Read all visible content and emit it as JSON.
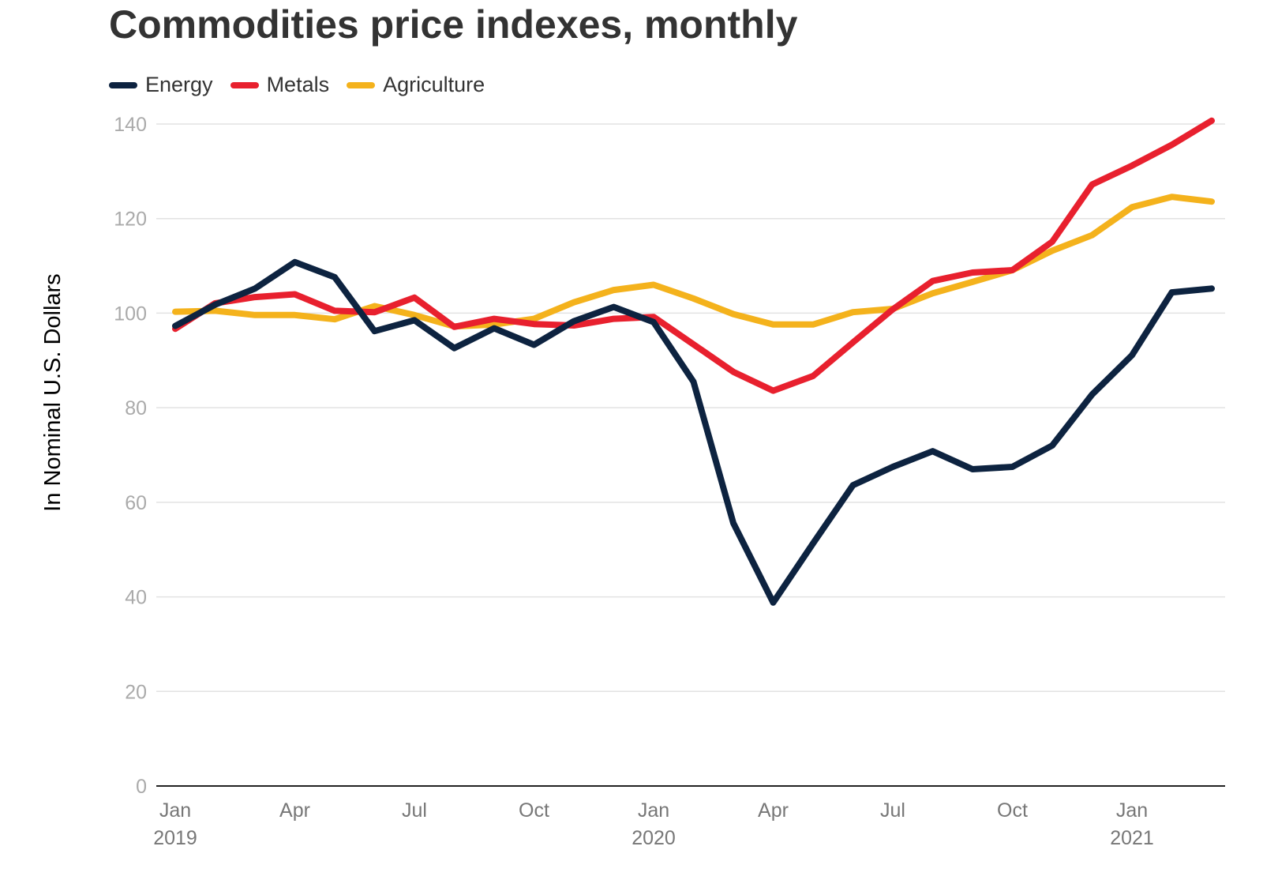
{
  "colors": {
    "energy": "#0d2340",
    "metals": "#e8202e",
    "agriculture": "#f4b21c"
  },
  "chart_data": {
    "type": "line",
    "title": "Commodities price indexes, monthly",
    "ylabel": "In Nominal U.S. Dollars",
    "xlabel": "",
    "ylim": [
      0,
      140
    ],
    "yticks": [
      0,
      20,
      40,
      60,
      80,
      100,
      120,
      140
    ],
    "grid": true,
    "legend_position": "top-left",
    "x": [
      "2019-01",
      "2019-02",
      "2019-03",
      "2019-04",
      "2019-05",
      "2019-06",
      "2019-07",
      "2019-08",
      "2019-09",
      "2019-10",
      "2019-11",
      "2019-12",
      "2020-01",
      "2020-02",
      "2020-03",
      "2020-04",
      "2020-05",
      "2020-06",
      "2020-07",
      "2020-08",
      "2020-09",
      "2020-10",
      "2020-11",
      "2020-12",
      "2021-01",
      "2021-02",
      "2021-03"
    ],
    "xtick_labels": [
      {
        "x": "2019-01",
        "line1": "Jan",
        "line2": "2019"
      },
      {
        "x": "2019-04",
        "line1": "Apr",
        "line2": ""
      },
      {
        "x": "2019-07",
        "line1": "Jul",
        "line2": ""
      },
      {
        "x": "2019-10",
        "line1": "Oct",
        "line2": ""
      },
      {
        "x": "2020-01",
        "line1": "Jan",
        "line2": "2020"
      },
      {
        "x": "2020-04",
        "line1": "Apr",
        "line2": ""
      },
      {
        "x": "2020-07",
        "line1": "Jul",
        "line2": ""
      },
      {
        "x": "2020-10",
        "line1": "Oct",
        "line2": ""
      },
      {
        "x": "2021-01",
        "line1": "Jan",
        "line2": "2021"
      }
    ],
    "series": [
      {
        "name": "Energy",
        "color_key": "energy",
        "values": [
          97.3,
          101.8,
          105.2,
          110.8,
          107.6,
          96.2,
          98.5,
          92.6,
          96.8,
          93.3,
          98.3,
          101.3,
          98.1,
          85.5,
          55.6,
          38.8,
          51.3,
          63.6,
          67.5,
          70.8,
          67.0,
          67.5,
          72.0,
          82.8,
          91.1,
          104.4,
          105.2
        ]
      },
      {
        "name": "Metals",
        "color_key": "metals",
        "values": [
          96.7,
          102.1,
          103.4,
          104.0,
          100.5,
          100.2,
          103.3,
          97.1,
          98.8,
          97.7,
          97.4,
          98.8,
          99.2,
          93.4,
          87.6,
          83.6,
          86.7,
          93.8,
          100.8,
          106.8,
          108.6,
          109.1,
          115.1,
          127.2,
          131.2,
          135.6,
          140.7
        ]
      },
      {
        "name": "Agriculture",
        "color_key": "agriculture",
        "values": [
          100.3,
          100.5,
          99.6,
          99.6,
          98.7,
          101.5,
          99.6,
          97.2,
          97.6,
          98.8,
          102.3,
          104.9,
          106.0,
          103.1,
          99.8,
          97.6,
          97.6,
          100.2,
          100.9,
          104.2,
          106.6,
          109.1,
          113.2,
          116.5,
          122.4,
          124.6,
          123.6
        ]
      }
    ]
  }
}
